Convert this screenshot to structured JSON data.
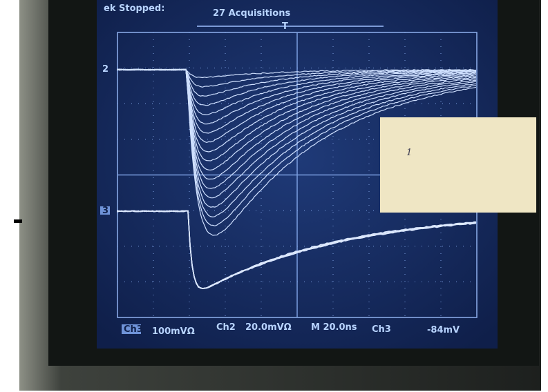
{
  "screen": {
    "status": "ek Stopped:",
    "acquisitions": "27 Acquisitions",
    "trigger_marker": "T",
    "channel_markers": [
      "2",
      "3"
    ],
    "readout": {
      "ch1_box": "Ch3",
      "ch1_scale": "100mVΩ",
      "ch2_label": "Ch2",
      "ch2_scale": "20.0mVΩ",
      "timebase": "M 20.0ns",
      "trigger_source": "Ch3",
      "trigger_level": "-84mV"
    }
  },
  "note": "1"
}
